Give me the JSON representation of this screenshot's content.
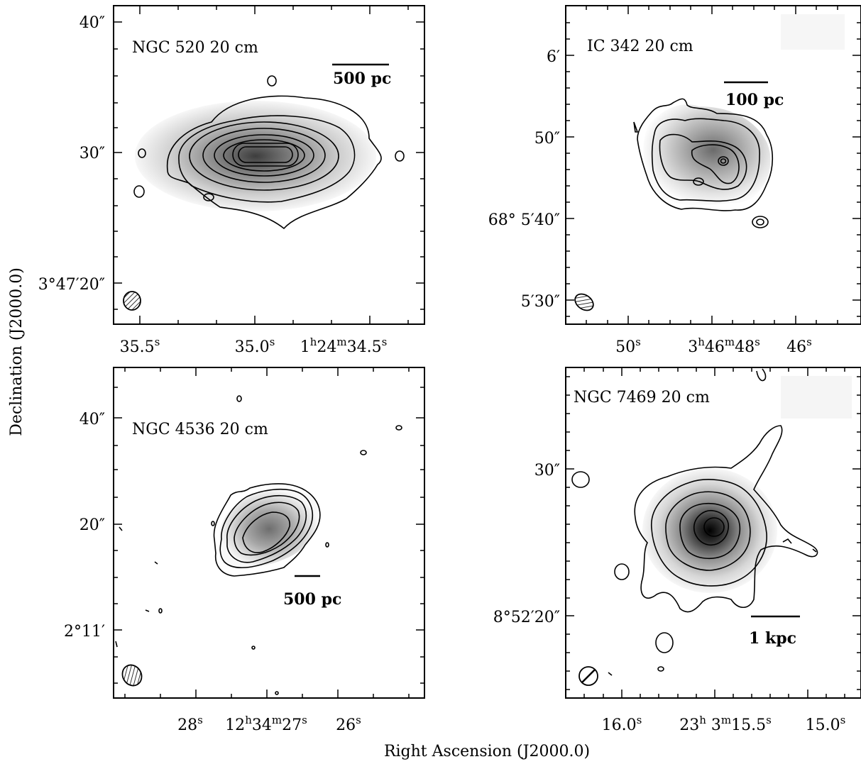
{
  "figure": {
    "xlabel": "Right Ascension (J2000.0)",
    "ylabel": "Declination (J2000.0)"
  },
  "panels": [
    {
      "id": "ngc520",
      "title": "NGC 520 20 cm",
      "scale_bar_label": "500 pc",
      "x_ticks": [
        {
          "main": "35.5",
          "sup": "s"
        },
        {
          "main": "35.0",
          "sup": "s"
        },
        {
          "main": "1",
          "sup": "h",
          "main2": "24",
          "sup2": "m",
          "main3": "34.5",
          "sup3": "s"
        }
      ],
      "y_ticks": [
        "40″",
        "30″",
        "3°47′20″"
      ]
    },
    {
      "id": "ic342",
      "title": "IC 342 20 cm",
      "scale_bar_label": "100 pc",
      "x_ticks": [
        {
          "main": "50",
          "sup": "s"
        },
        {
          "main": "3",
          "sup": "h",
          "main2": "46",
          "sup2": "m",
          "main3": "48",
          "sup3": "s"
        },
        {
          "main": "46",
          "sup": "s"
        }
      ],
      "y_ticks": [
        "6′",
        "50″",
        "68° 5′40″",
        "5′30″"
      ]
    },
    {
      "id": "ngc4536",
      "title": "NGC 4536 20 cm",
      "scale_bar_label": "500 pc",
      "x_ticks": [
        {
          "main": "28",
          "sup": "s"
        },
        {
          "main": "12",
          "sup": "h",
          "main2": "34",
          "sup2": "m",
          "main3": "27",
          "sup3": "s"
        },
        {
          "main": "26",
          "sup": "s"
        }
      ],
      "y_ticks": [
        "40″",
        "20″",
        "2°11′"
      ]
    },
    {
      "id": "ngc7469",
      "title": "NGC 7469 20 cm",
      "scale_bar_label": "1 kpc",
      "x_ticks": [
        {
          "main": "16.0",
          "sup": "s"
        },
        {
          "main": "23",
          "sup": "h",
          "main2": " 3",
          "sup2": "m",
          "main3": "15.5",
          "sup3": "s"
        },
        {
          "main": "15.0",
          "sup": "s"
        }
      ],
      "y_ticks": [
        "30″",
        "8°52′20″"
      ]
    }
  ]
}
